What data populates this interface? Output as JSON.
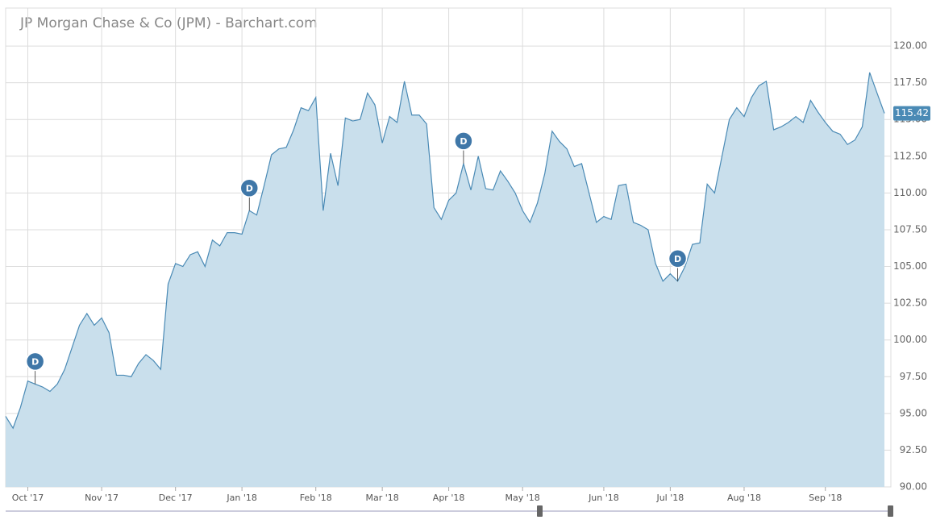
{
  "chart_data": {
    "type": "area",
    "title": "JP Morgan Chase & Co (JPM) - Barchart.com",
    "categories": [
      null,
      null,
      null,
      "Oct '17",
      null,
      null,
      null,
      null,
      null,
      null,
      null,
      null,
      null,
      "Nov '17",
      null,
      null,
      null,
      null,
      null,
      null,
      null,
      null,
      null,
      "Dec '17",
      null,
      null,
      null,
      null,
      null,
      null,
      null,
      null,
      "Jan '18",
      null,
      null,
      null,
      null,
      null,
      null,
      null,
      null,
      null,
      "Feb '18",
      null,
      null,
      null,
      null,
      null,
      null,
      null,
      null,
      "Mar '18",
      null,
      null,
      null,
      null,
      null,
      null,
      null,
      null,
      "Apr '18",
      null,
      null,
      null,
      null,
      null,
      null,
      null,
      null,
      null,
      "May '18",
      null,
      null,
      null,
      null,
      null,
      null,
      null,
      null,
      null,
      null,
      "Jun '18",
      null,
      null,
      null,
      null,
      null,
      null,
      null,
      null,
      "Jul '18",
      null,
      null,
      null,
      null,
      null,
      null,
      null,
      null,
      null,
      "Aug '18",
      null,
      null,
      null,
      null,
      null,
      null,
      null,
      null,
      null,
      null,
      "Sep '18",
      null,
      null,
      null,
      null,
      null,
      null,
      null,
      null
    ],
    "series": [
      {
        "name": "JPM",
        "color": "#4a8ab5",
        "fill": "#c9dfec",
        "values": [
          94.8,
          94.0,
          95.4,
          97.2,
          97.0,
          96.8,
          96.5,
          97.0,
          98.0,
          99.5,
          101.0,
          101.8,
          101.0,
          101.5,
          100.5,
          97.6,
          97.6,
          97.5,
          98.4,
          99.0,
          98.6,
          98.0,
          103.8,
          105.2,
          105.0,
          105.8,
          106.0,
          105.0,
          106.8,
          106.4,
          107.3,
          107.3,
          107.2,
          108.8,
          108.5,
          110.5,
          112.6,
          113.0,
          113.1,
          114.3,
          115.8,
          115.6,
          116.5,
          108.8,
          112.7,
          110.5,
          115.1,
          114.9,
          115.0,
          116.8,
          116.0,
          113.4,
          115.2,
          114.8,
          117.6,
          115.3,
          115.3,
          114.7,
          109.0,
          108.2,
          109.5,
          110.0,
          112.0,
          110.2,
          112.5,
          110.3,
          110.2,
          111.5,
          110.8,
          110.0,
          108.8,
          108.0,
          109.3,
          111.3,
          114.2,
          113.5,
          113.0,
          111.8,
          112.0,
          110.0,
          108.0,
          108.4,
          108.2,
          110.5,
          110.6,
          108.0,
          107.8,
          107.5,
          105.2,
          104.0,
          104.5,
          104.0,
          105.0,
          106.5,
          106.6,
          110.6,
          110.0,
          112.5,
          115.0,
          115.8,
          115.2,
          116.5,
          117.3,
          117.6,
          114.3,
          114.5,
          114.8,
          115.2,
          114.8,
          116.3,
          115.5,
          114.8,
          114.2,
          114.0,
          113.3,
          113.6,
          114.5,
          118.2,
          116.8,
          115.42
        ]
      }
    ],
    "dividend_markers": [
      {
        "text": "D",
        "at": 4
      },
      {
        "text": "D",
        "at": 33
      },
      {
        "text": "D",
        "at": 62
      },
      {
        "text": "D",
        "at": 91
      }
    ],
    "ylim": [
      90,
      122.5
    ],
    "yticks": [
      {
        "value": 90,
        "label": "90.00"
      },
      {
        "value": 92.5,
        "label": "92.50"
      },
      {
        "value": 95,
        "label": "95.00"
      },
      {
        "value": 97.5,
        "label": "97.50"
      },
      {
        "value": 100,
        "label": "100.00"
      },
      {
        "value": 102.5,
        "label": "102.50"
      },
      {
        "value": 105,
        "label": "105.00"
      },
      {
        "value": 107.5,
        "label": "107.50"
      },
      {
        "value": 110,
        "label": "110.00"
      },
      {
        "value": 112.5,
        "label": "112.50"
      },
      {
        "value": 115,
        "label": "115.00"
      },
      {
        "value": 117.5,
        "label": "117.50"
      },
      {
        "value": 120,
        "label": "120.00"
      }
    ],
    "grid": true
  }
}
